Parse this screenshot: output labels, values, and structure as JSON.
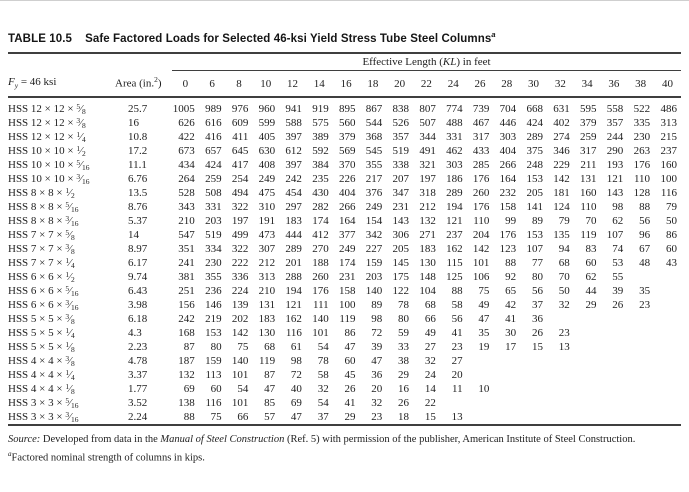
{
  "colors": {
    "background": "#ffffff",
    "text": "#1e1e1e",
    "rule": "#3f3f3f"
  },
  "title": {
    "label": "TABLE 10.5",
    "text": "Safe Factored Loads for Selected 46-ksi Yield Stress Tube Steel Columns",
    "footnote_marker": "a"
  },
  "table": {
    "kl_header": {
      "pre": "Effective Length (",
      "italic": "KL",
      "post": ") in feet"
    },
    "fy_header": {
      "f": "F",
      "sub": "y",
      "rest": " = 46 ksi"
    },
    "area_header": {
      "pre": "Area (in.",
      "sup": "2",
      "post": ")"
    },
    "kl_columns": [
      "0",
      "6",
      "8",
      "10",
      "12",
      "14",
      "16",
      "18",
      "20",
      "22",
      "24",
      "26",
      "28",
      "30",
      "32",
      "34",
      "36",
      "38",
      "40"
    ],
    "rows": [
      {
        "designation": {
          "pre": "HSS 12 × 12 × ",
          "frac_num": "5",
          "frac_den": "8"
        },
        "area": "25.7",
        "loads": [
          1005,
          989,
          976,
          960,
          941,
          919,
          895,
          867,
          838,
          807,
          774,
          739,
          704,
          668,
          631,
          595,
          558,
          522,
          486
        ]
      },
      {
        "designation": {
          "pre": "HSS 12 × 12 × ",
          "frac_num": "3",
          "frac_den": "8"
        },
        "area": "16",
        "loads": [
          626,
          616,
          609,
          599,
          588,
          575,
          560,
          544,
          526,
          507,
          488,
          467,
          446,
          424,
          402,
          379,
          357,
          335,
          313
        ]
      },
      {
        "designation": {
          "pre": "HSS 12 × 12 × ",
          "frac_num": "1",
          "frac_den": "4"
        },
        "area": "10.8",
        "loads": [
          422,
          416,
          411,
          405,
          397,
          389,
          379,
          368,
          357,
          344,
          331,
          317,
          303,
          289,
          274,
          259,
          244,
          230,
          215
        ]
      },
      {
        "designation": {
          "pre": "HSS 10 × 10 × ",
          "frac_num": "1",
          "frac_den": "2"
        },
        "area": "17.2",
        "loads": [
          673,
          657,
          645,
          630,
          612,
          592,
          569,
          545,
          519,
          491,
          462,
          433,
          404,
          375,
          346,
          317,
          290,
          263,
          237
        ]
      },
      {
        "designation": {
          "pre": "HSS 10 × 10 × ",
          "frac_num": "5",
          "frac_den": "16"
        },
        "area": "11.1",
        "loads": [
          434,
          424,
          417,
          408,
          397,
          384,
          370,
          355,
          338,
          321,
          303,
          285,
          266,
          248,
          229,
          211,
          193,
          176,
          160
        ]
      },
      {
        "designation": {
          "pre": "HSS 10 × 10 × ",
          "frac_num": "3",
          "frac_den": "16"
        },
        "area": "6.76",
        "loads": [
          264,
          259,
          254,
          249,
          242,
          235,
          226,
          217,
          207,
          197,
          186,
          176,
          164,
          153,
          142,
          131,
          121,
          110,
          100
        ]
      },
      {
        "designation": {
          "pre": "HSS 8 × 8 × ",
          "frac_num": "1",
          "frac_den": "2"
        },
        "area": "13.5",
        "loads": [
          528,
          508,
          494,
          475,
          454,
          430,
          404,
          376,
          347,
          318,
          289,
          260,
          232,
          205,
          181,
          160,
          143,
          128,
          116
        ]
      },
      {
        "designation": {
          "pre": "HSS 8 × 8 × ",
          "frac_num": "5",
          "frac_den": "16"
        },
        "area": "8.76",
        "loads": [
          343,
          331,
          322,
          310,
          297,
          282,
          266,
          249,
          231,
          212,
          194,
          176,
          158,
          141,
          124,
          110,
          98,
          88,
          79
        ]
      },
      {
        "designation": {
          "pre": "HSS 8 × 8 × ",
          "frac_num": "3",
          "frac_den": "16"
        },
        "area": "5.37",
        "loads": [
          210,
          203,
          197,
          191,
          183,
          174,
          164,
          154,
          143,
          132,
          121,
          110,
          99,
          89,
          79,
          70,
          62,
          56,
          50
        ]
      },
      {
        "designation": {
          "pre": "HSS 7 × 7 × ",
          "frac_num": "5",
          "frac_den": "8"
        },
        "area": "14",
        "loads": [
          547,
          519,
          499,
          473,
          444,
          412,
          377,
          342,
          306,
          271,
          237,
          204,
          176,
          153,
          135,
          119,
          107,
          96,
          86
        ]
      },
      {
        "designation": {
          "pre": "HSS 7 × 7 × ",
          "frac_num": "3",
          "frac_den": "8"
        },
        "area": "8.97",
        "loads": [
          351,
          334,
          322,
          307,
          289,
          270,
          249,
          227,
          205,
          183,
          162,
          142,
          123,
          107,
          94,
          83,
          74,
          67,
          60
        ]
      },
      {
        "designation": {
          "pre": "HSS 7 × 7 × ",
          "frac_num": "1",
          "frac_den": "4"
        },
        "area": "6.17",
        "loads": [
          241,
          230,
          222,
          212,
          201,
          188,
          174,
          159,
          145,
          130,
          115,
          101,
          88,
          77,
          68,
          60,
          53,
          48,
          43
        ]
      },
      {
        "designation": {
          "pre": "HSS 6 × 6 × ",
          "frac_num": "1",
          "frac_den": "2"
        },
        "area": "9.74",
        "loads": [
          381,
          355,
          336,
          313,
          288,
          260,
          231,
          203,
          175,
          148,
          125,
          106,
          92,
          80,
          70,
          62,
          55
        ]
      },
      {
        "designation": {
          "pre": "HSS 6 × 6 × ",
          "frac_num": "5",
          "frac_den": "16"
        },
        "area": "6.43",
        "loads": [
          251,
          236,
          224,
          210,
          194,
          176,
          158,
          140,
          122,
          104,
          88,
          75,
          65,
          56,
          50,
          44,
          39,
          35
        ]
      },
      {
        "designation": {
          "pre": "HSS 6 × 6 × ",
          "frac_num": "3",
          "frac_den": "16"
        },
        "area": "3.98",
        "loads": [
          156,
          146,
          139,
          131,
          121,
          111,
          100,
          89,
          78,
          68,
          58,
          49,
          42,
          37,
          32,
          29,
          26,
          23
        ]
      },
      {
        "designation": {
          "pre": "HSS 5 × 5 × ",
          "frac_num": "3",
          "frac_den": "8"
        },
        "area": "6.18",
        "loads": [
          242,
          219,
          202,
          183,
          162,
          140,
          119,
          98,
          80,
          66,
          56,
          47,
          41,
          36
        ]
      },
      {
        "designation": {
          "pre": "HSS 5 × 5 × ",
          "frac_num": "1",
          "frac_den": "4"
        },
        "area": "4.3",
        "loads": [
          168,
          153,
          142,
          130,
          116,
          101,
          86,
          72,
          59,
          49,
          41,
          35,
          30,
          26,
          23
        ]
      },
      {
        "designation": {
          "pre": "HSS 5 × 5 × ",
          "frac_num": "1",
          "frac_den": "8"
        },
        "area": "2.23",
        "loads": [
          87,
          80,
          75,
          68,
          61,
          54,
          47,
          39,
          33,
          27,
          23,
          19,
          17,
          15,
          13
        ]
      },
      {
        "designation": {
          "pre": "HSS 4 × 4 × ",
          "frac_num": "3",
          "frac_den": "8"
        },
        "area": "4.78",
        "loads": [
          187,
          159,
          140,
          119,
          98,
          78,
          60,
          47,
          38,
          32,
          27
        ]
      },
      {
        "designation": {
          "pre": "HSS 4 × 4 × ",
          "frac_num": "1",
          "frac_den": "4"
        },
        "area": "3.37",
        "loads": [
          132,
          113,
          101,
          87,
          72,
          58,
          45,
          36,
          29,
          24,
          20
        ]
      },
      {
        "designation": {
          "pre": "HSS 4 × 4 × ",
          "frac_num": "1",
          "frac_den": "8"
        },
        "area": "1.77",
        "loads": [
          69,
          60,
          54,
          47,
          40,
          32,
          26,
          20,
          16,
          14,
          11,
          10
        ]
      },
      {
        "designation": {
          "pre": "HSS 3 × 3 × ",
          "frac_num": "5",
          "frac_den": "16"
        },
        "area": "3.52",
        "loads": [
          138,
          116,
          101,
          85,
          69,
          54,
          41,
          32,
          26,
          22
        ]
      },
      {
        "designation": {
          "pre": "HSS 3 × 3 × ",
          "frac_num": "3",
          "frac_den": "16"
        },
        "area": "2.24",
        "loads": [
          88,
          75,
          66,
          57,
          47,
          37,
          29,
          23,
          18,
          15,
          13
        ]
      }
    ]
  },
  "footer": {
    "source_label": "Source:",
    "source_text_1": " Developed from data in the ",
    "source_italic": "Manual of Steel Construction",
    "source_text_2": " (Ref. 5) with permission of the publisher, American Institute of Steel Construction.",
    "footnote_marker": "a",
    "footnote_text": "Factored nominal strength of columns in kips."
  }
}
